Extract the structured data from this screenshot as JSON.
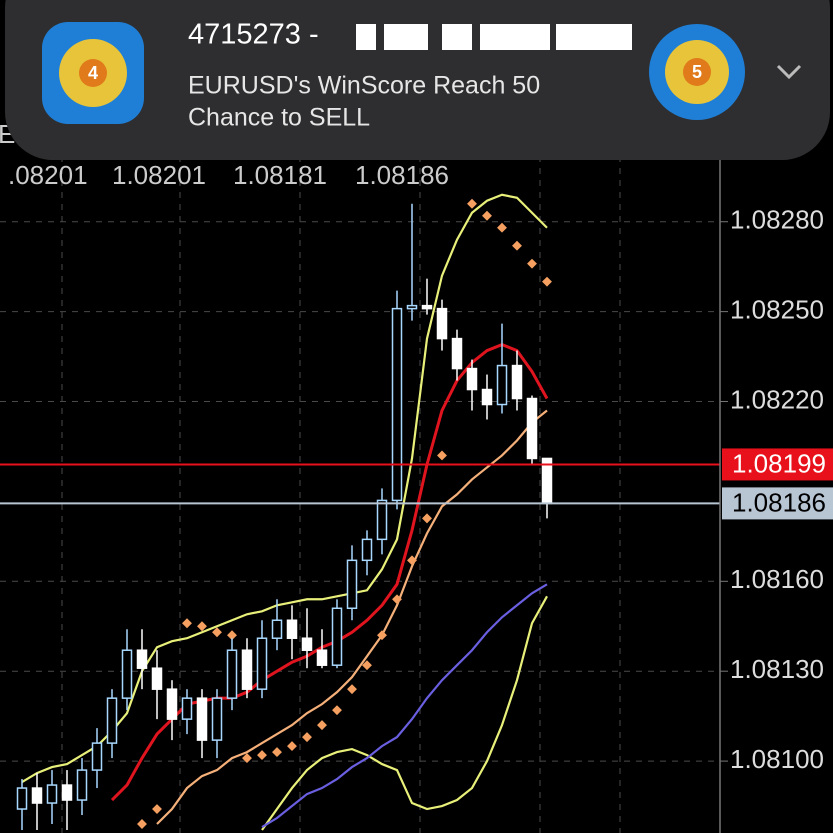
{
  "notification": {
    "title": "4715273 - ",
    "line1": "EURUSD's WinScore Reach 50",
    "line2": "Chance to SELL",
    "icon_left": "4",
    "icon_right": "5"
  },
  "chart_data": {
    "type": "candlestick",
    "symbol": "EURUSD",
    "ohlc": [
      ".08201",
      "1.08201",
      "1.08181",
      "1.08186"
    ],
    "ylim": [
      1.08076,
      1.08354
    ],
    "yticks": [
      {
        "value": 1.081,
        "label": "1.08100"
      },
      {
        "value": 1.0813,
        "label": "1.08130"
      },
      {
        "value": 1.0816,
        "label": "1.08160"
      },
      {
        "value": 1.0822,
        "label": "1.08220"
      },
      {
        "value": 1.0825,
        "label": "1.08250"
      },
      {
        "value": 1.0828,
        "label": "1.08280"
      }
    ],
    "grid": true,
    "up_color": "#a8d8ff",
    "down_color": "#ffffff",
    "open": [
      1.08084,
      1.08091,
      1.08086,
      1.08092,
      1.08087,
      1.08097,
      1.08106,
      1.08121,
      1.08137,
      1.08131,
      1.08124,
      1.08114,
      1.08121,
      1.08107,
      1.08121,
      1.08137,
      1.08124,
      1.08141,
      1.08147,
      1.08141,
      1.08137,
      1.08132,
      1.08151,
      1.08167,
      1.08174,
      1.08187,
      1.08251,
      1.08252,
      1.08251,
      1.08241,
      1.08231,
      1.08224,
      1.08219,
      1.08232,
      1.08221,
      1.08201
    ],
    "high": [
      1.08094,
      1.08096,
      1.08097,
      1.08097,
      1.08101,
      1.08111,
      1.08124,
      1.08144,
      1.08144,
      1.08137,
      1.08127,
      1.08124,
      1.08124,
      1.08124,
      1.08141,
      1.08141,
      1.08147,
      1.08154,
      1.08152,
      1.08151,
      1.08144,
      1.08154,
      1.08172,
      1.08177,
      1.08191,
      1.08257,
      1.08286,
      1.08261,
      1.08254,
      1.08244,
      1.08234,
      1.08229,
      1.08246,
      1.08237,
      1.08222,
      1.08201
    ],
    "low": [
      1.08077,
      1.08077,
      1.08079,
      1.08077,
      1.08082,
      1.08091,
      1.08101,
      1.08117,
      1.08124,
      1.08114,
      1.08107,
      1.08109,
      1.08101,
      1.08101,
      1.08117,
      1.08121,
      1.08121,
      1.08137,
      1.08134,
      1.08131,
      1.08131,
      1.08131,
      1.08147,
      1.08162,
      1.08169,
      1.08184,
      1.08247,
      1.08249,
      1.08237,
      1.08227,
      1.08217,
      1.08214,
      1.08216,
      1.08217,
      1.08199,
      1.08181
    ],
    "close": [
      1.08091,
      1.08086,
      1.08092,
      1.08087,
      1.08097,
      1.08106,
      1.08121,
      1.08137,
      1.08131,
      1.08124,
      1.08114,
      1.08121,
      1.08107,
      1.08121,
      1.08137,
      1.08124,
      1.08141,
      1.08147,
      1.08141,
      1.08137,
      1.08132,
      1.08151,
      1.08167,
      1.08174,
      1.08187,
      1.08251,
      1.08252,
      1.08251,
      1.08241,
      1.08231,
      1.08224,
      1.08219,
      1.08232,
      1.08221,
      1.08201,
      1.08186
    ],
    "indicators": [
      {
        "color": "#e8f07a",
        "values": [
          1.08093,
          1.08096,
          1.08098,
          1.08099,
          1.08102,
          1.08105,
          1.0811,
          1.08116,
          1.0813,
          1.08138,
          1.0814,
          1.08141,
          1.08143,
          1.08145,
          1.08147,
          1.08149,
          1.0815,
          1.08152,
          1.08153,
          1.08154,
          1.08154,
          1.08155,
          1.08156,
          1.08157,
          1.08164,
          1.08174,
          1.08201,
          1.08241,
          1.08262,
          1.08274,
          1.08283,
          1.08287,
          1.08289,
          1.08288,
          1.08283,
          1.08278
        ]
      },
      {
        "color": "#e8f07a",
        "values": [
          null,
          null,
          null,
          null,
          null,
          null,
          null,
          null,
          null,
          null,
          null,
          null,
          null,
          null,
          null,
          null,
          1.08077,
          1.08084,
          1.08091,
          1.08097,
          1.08101,
          1.08103,
          1.08104,
          1.08102,
          1.08099,
          1.08097,
          1.08086,
          1.08084,
          1.08085,
          1.08087,
          1.08091,
          1.081,
          1.08112,
          1.08127,
          1.08146,
          1.08155
        ]
      },
      {
        "color": "#6a5fe0",
        "values": [
          null,
          null,
          null,
          null,
          null,
          null,
          null,
          null,
          null,
          null,
          null,
          null,
          null,
          null,
          null,
          null,
          1.08078,
          1.08081,
          1.08085,
          1.08089,
          1.08091,
          1.08094,
          1.08098,
          1.08101,
          1.08105,
          1.08108,
          1.08114,
          1.08121,
          1.08127,
          1.08132,
          1.08137,
          1.08143,
          1.08148,
          1.08152,
          1.08156,
          1.08159
        ]
      },
      {
        "color": "#f5b07a",
        "values": [
          null,
          null,
          null,
          null,
          null,
          null,
          null,
          null,
          null,
          1.08079,
          1.08084,
          1.08091,
          1.08095,
          1.08097,
          1.08101,
          1.08103,
          1.08106,
          1.08109,
          1.08112,
          1.08116,
          1.08119,
          1.08123,
          1.08128,
          1.08135,
          1.08142,
          1.08152,
          1.08165,
          1.08176,
          1.08185,
          1.08189,
          1.08194,
          1.08198,
          1.08202,
          1.08207,
          1.08213,
          1.08217
        ]
      },
      {
        "color": "#e0141e",
        "values": [
          null,
          null,
          null,
          null,
          null,
          null,
          1.08087,
          1.08092,
          1.08101,
          1.08109,
          1.08114,
          1.08119,
          1.0812,
          1.08121,
          1.08121,
          1.08123,
          1.08127,
          1.0813,
          1.08133,
          1.08135,
          1.08138,
          1.0814,
          1.08143,
          1.08147,
          1.08152,
          1.08159,
          1.08177,
          1.08199,
          1.08217,
          1.08227,
          1.08233,
          1.08237,
          1.08239,
          1.08237,
          1.0823,
          1.08221
        ]
      }
    ],
    "sar": {
      "color": "#f5a060",
      "values": [
        null,
        null,
        null,
        null,
        null,
        null,
        null,
        null,
        1.08079,
        1.08084,
        null,
        1.08146,
        1.08145,
        1.08143,
        1.08142,
        1.08101,
        1.08102,
        1.08103,
        1.08105,
        1.08108,
        1.08112,
        1.08117,
        1.08124,
        1.08132,
        1.08142,
        1.08154,
        1.08167,
        1.08181,
        1.08202,
        1.08234,
        1.08286,
        1.08282,
        1.08278,
        1.08272,
        1.08266,
        1.0826
      ]
    },
    "price_lines": [
      {
        "value": 1.08199,
        "color": "#e8101a",
        "text_color": "#ffffff"
      },
      {
        "value": 1.08186,
        "color": "#b8c6d4",
        "text_color": "#000000"
      }
    ]
  }
}
